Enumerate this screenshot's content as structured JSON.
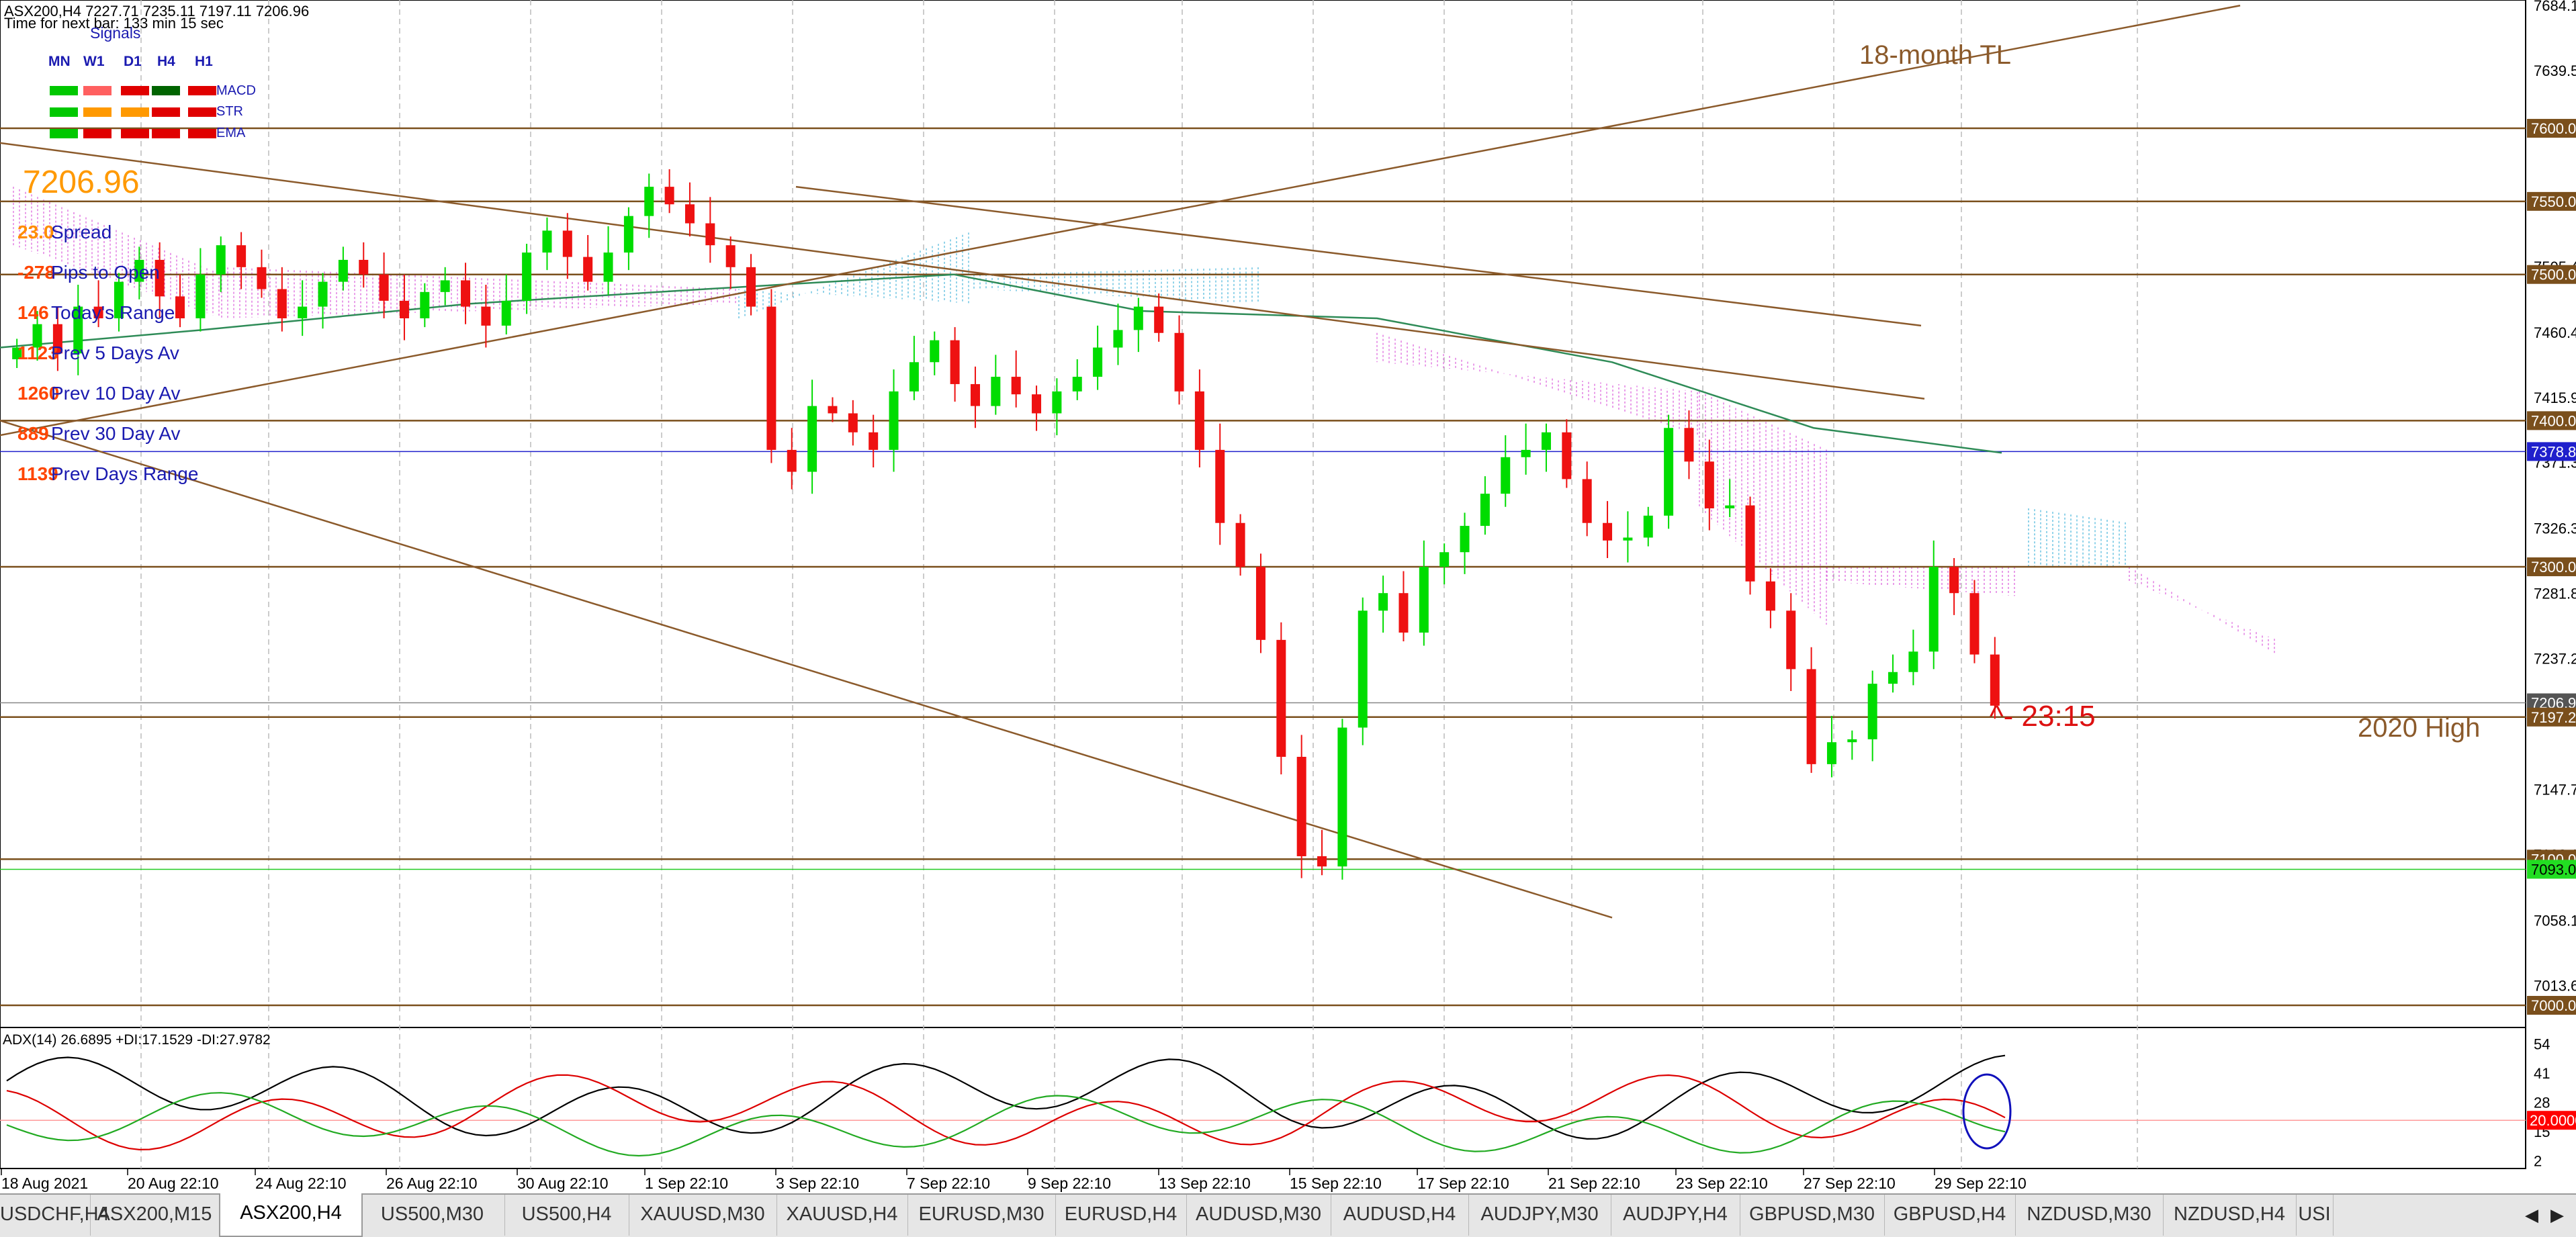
{
  "header": {
    "symbol_line": "ASX200,H4  7227.71 7235.11 7197.11 7206.96",
    "timer_line": "Time for next bar: 133 min 15 sec"
  },
  "signals": {
    "title": "Signals",
    "timeframes": [
      "MN",
      "W1",
      "D1",
      "H4",
      "H1"
    ],
    "rows": [
      {
        "label": "MACD",
        "colors": [
          "#00c800",
          "#ff6060",
          "#e00000",
          "#006400",
          "#e00000"
        ]
      },
      {
        "label": "STR",
        "colors": [
          "#00c800",
          "#ff9900",
          "#ff9900",
          "#e00000",
          "#e00000"
        ]
      },
      {
        "label": "EMA",
        "colors": [
          "#00c800",
          "#e00000",
          "#e00000",
          "#e00000",
          "#e00000"
        ]
      }
    ]
  },
  "info_panel": {
    "price": "7206.96",
    "rows": [
      {
        "value": "23.0",
        "label": "Spread",
        "value_color": "#ff8c00"
      },
      {
        "value": "-278",
        "label": "Pips to Open",
        "value_color": "#ff4500"
      },
      {
        "value": "146",
        "label": "Today's Range",
        "value_color": "#ff4500"
      },
      {
        "value": "1123",
        "label": "Prev 5 Days Av",
        "value_color": "#ff4500"
      },
      {
        "value": "1260",
        "label": "Prev 10 Day Av",
        "value_color": "#ff4500"
      },
      {
        "value": "889",
        "label": "Prev 30 Day Av",
        "value_color": "#ff4500"
      },
      {
        "value": "1139",
        "label": "Prev Days Range",
        "value_color": "#ff4500"
      }
    ]
  },
  "annotations": {
    "tl_label": "18-month TL",
    "high_label": "2020 High",
    "timer_label": "^- 23:15"
  },
  "price_axis": {
    "ticks": [
      "7684.10",
      "7639.55",
      "7505.45",
      "7460.45",
      "7415.90",
      "7371.35",
      "7326.35",
      "7281.80",
      "7237.25",
      "7147.70",
      "7103.15",
      "7058.15",
      "7013.60"
    ],
    "tags": [
      {
        "text": "7600.00",
        "kind": "level"
      },
      {
        "text": "7550.00",
        "kind": "level"
      },
      {
        "text": "7500.00",
        "kind": "level"
      },
      {
        "text": "7400.00",
        "kind": "level"
      },
      {
        "text": "7378.85",
        "kind": "blue"
      },
      {
        "text": "7300.00",
        "kind": "level"
      },
      {
        "text": "7206.96",
        "kind": "bid"
      },
      {
        "text": "7197.20",
        "kind": "level"
      },
      {
        "text": "7100.00",
        "kind": "level"
      },
      {
        "text": "7093.06",
        "kind": "green"
      },
      {
        "text": "7000.00",
        "kind": "level"
      }
    ]
  },
  "adx": {
    "label": "ADX(14) 26.6895 +DI:17.1529 -DI:27.9782",
    "ticks": [
      "54",
      "41",
      "28",
      "15",
      "2"
    ],
    "level_tag": "20.0000"
  },
  "time_axis": {
    "labels": [
      "18 Aug 2021",
      "20 Aug 22:10",
      "24 Aug 22:10",
      "26 Aug 22:10",
      "30 Aug 22:10",
      "1 Sep 22:10",
      "3 Sep 22:10",
      "7 Sep 22:10",
      "9 Sep 22:10",
      "13 Sep 22:10",
      "15 Sep 22:10",
      "17 Sep 22:10",
      "21 Sep 22:10",
      "23 Sep 22:10",
      "27 Sep 22:10",
      "29 Sep 22:10"
    ]
  },
  "tabs": [
    {
      "label": "USDCHF,H4",
      "active": false
    },
    {
      "label": "ASX200,M15",
      "active": false
    },
    {
      "label": "ASX200,H4",
      "active": true
    },
    {
      "label": "US500,M30",
      "active": false
    },
    {
      "label": "US500,H4",
      "active": false
    },
    {
      "label": "XAUUSD,M30",
      "active": false
    },
    {
      "label": "XAUUSD,H4",
      "active": false
    },
    {
      "label": "EURUSD,M30",
      "active": false
    },
    {
      "label": "EURUSD,H4",
      "active": false
    },
    {
      "label": "AUDUSD,M30",
      "active": false
    },
    {
      "label": "AUDUSD,H4",
      "active": false
    },
    {
      "label": "AUDJPY,M30",
      "active": false
    },
    {
      "label": "AUDJPY,H4",
      "active": false
    },
    {
      "label": "GBPUSD,M30",
      "active": false
    },
    {
      "label": "GBPUSD,H4",
      "active": false
    },
    {
      "label": "NZDUSD,M30",
      "active": false
    },
    {
      "label": "NZDUSD,H4",
      "active": false
    },
    {
      "label": "USI",
      "active": false
    }
  ],
  "colors": {
    "bull": "#00dc00",
    "bear": "#ee1111",
    "level": "#7a4f1c",
    "trendline": "#8b5a2b",
    "ma": "#2e8b57",
    "cloud_bear": "#dd66dd",
    "cloud_bull": "#55bbdd",
    "blue_line": "#2020cc",
    "adx_main": "#000000",
    "adx_plus": "#22aa22",
    "adx_minus": "#dd0000",
    "ellipse": "#1010bb"
  },
  "chart_data": {
    "type": "candlestick",
    "symbol": "ASX200",
    "timeframe": "H4",
    "last": {
      "open": 7227.71,
      "high": 7235.11,
      "low": 7197.11,
      "close": 7206.96
    },
    "ylim": [
      7000,
      7684.1
    ],
    "horizontal_levels": [
      7600,
      7550,
      7500,
      7400,
      7300,
      7197.2,
      7100,
      7000
    ],
    "candles_path": [
      7450,
      7466,
      7446,
      7478,
      7470,
      7495,
      7510,
      7485,
      7470,
      7500,
      7520,
      7505,
      7490,
      7470,
      7478,
      7495,
      7510,
      7500,
      7482,
      7470,
      7488,
      7496,
      7478,
      7465,
      7482,
      7515,
      7530,
      7512,
      7495,
      7515,
      7540,
      7560,
      7548,
      7535,
      7520,
      7505,
      7478,
      7380,
      7365,
      7410,
      7405,
      7392,
      7380,
      7420,
      7440,
      7455,
      7425,
      7410,
      7430,
      7418,
      7405,
      7420,
      7430,
      7450,
      7462,
      7478,
      7460,
      7420,
      7380,
      7330,
      7300,
      7250,
      7170,
      7102,
      7095,
      7190,
      7270,
      7282,
      7255,
      7300,
      7310,
      7328,
      7350,
      7375,
      7380,
      7392,
      7360,
      7330,
      7318,
      7320,
      7335,
      7395,
      7372,
      7340,
      7342,
      7290,
      7270,
      7230,
      7165,
      7180,
      7182,
      7220,
      7228,
      7242,
      7300,
      7282,
      7240,
      7205
    ]
  }
}
